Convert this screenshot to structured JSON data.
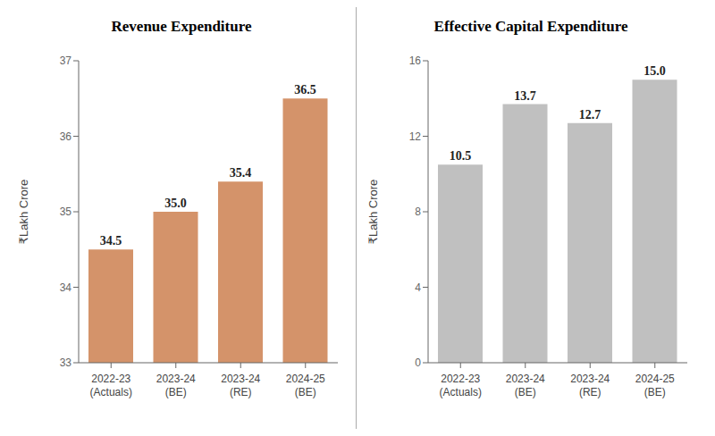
{
  "chart_data": [
    {
      "type": "bar",
      "title": "Revenue Expenditure",
      "categories": [
        "2022-23\n(Actuals)",
        "2023-24\n(BE)",
        "2023-24\n(RE)",
        "2024-25\n(BE)"
      ],
      "values": [
        34.5,
        35.0,
        35.4,
        36.5
      ],
      "value_labels": [
        "34.5",
        "35.0",
        "35.4",
        "36.5"
      ],
      "data_labels": true,
      "ylim": [
        33,
        37
      ],
      "yticks": [
        33,
        34,
        35,
        36,
        37
      ],
      "ylabel": "₹Lakh Crore",
      "color": "#d4936a",
      "grid": false
    },
    {
      "type": "bar",
      "title": "Effective Capital Expenditure",
      "categories": [
        "2022-23\n(Actuals)",
        "2023-24\n(BE)",
        "2023-24\n(RE)",
        "2024-25\n(BE)"
      ],
      "values": [
        10.5,
        13.7,
        12.7,
        15.0
      ],
      "value_labels": [
        "10.5",
        "13.7",
        "12.7",
        "15.0"
      ],
      "data_labels": true,
      "ylim": [
        0,
        16
      ],
      "yticks": [
        0,
        4,
        8,
        12,
        16
      ],
      "ylabel": "₹Lakh Crore",
      "color": "#c0c0c0",
      "grid": false
    }
  ]
}
